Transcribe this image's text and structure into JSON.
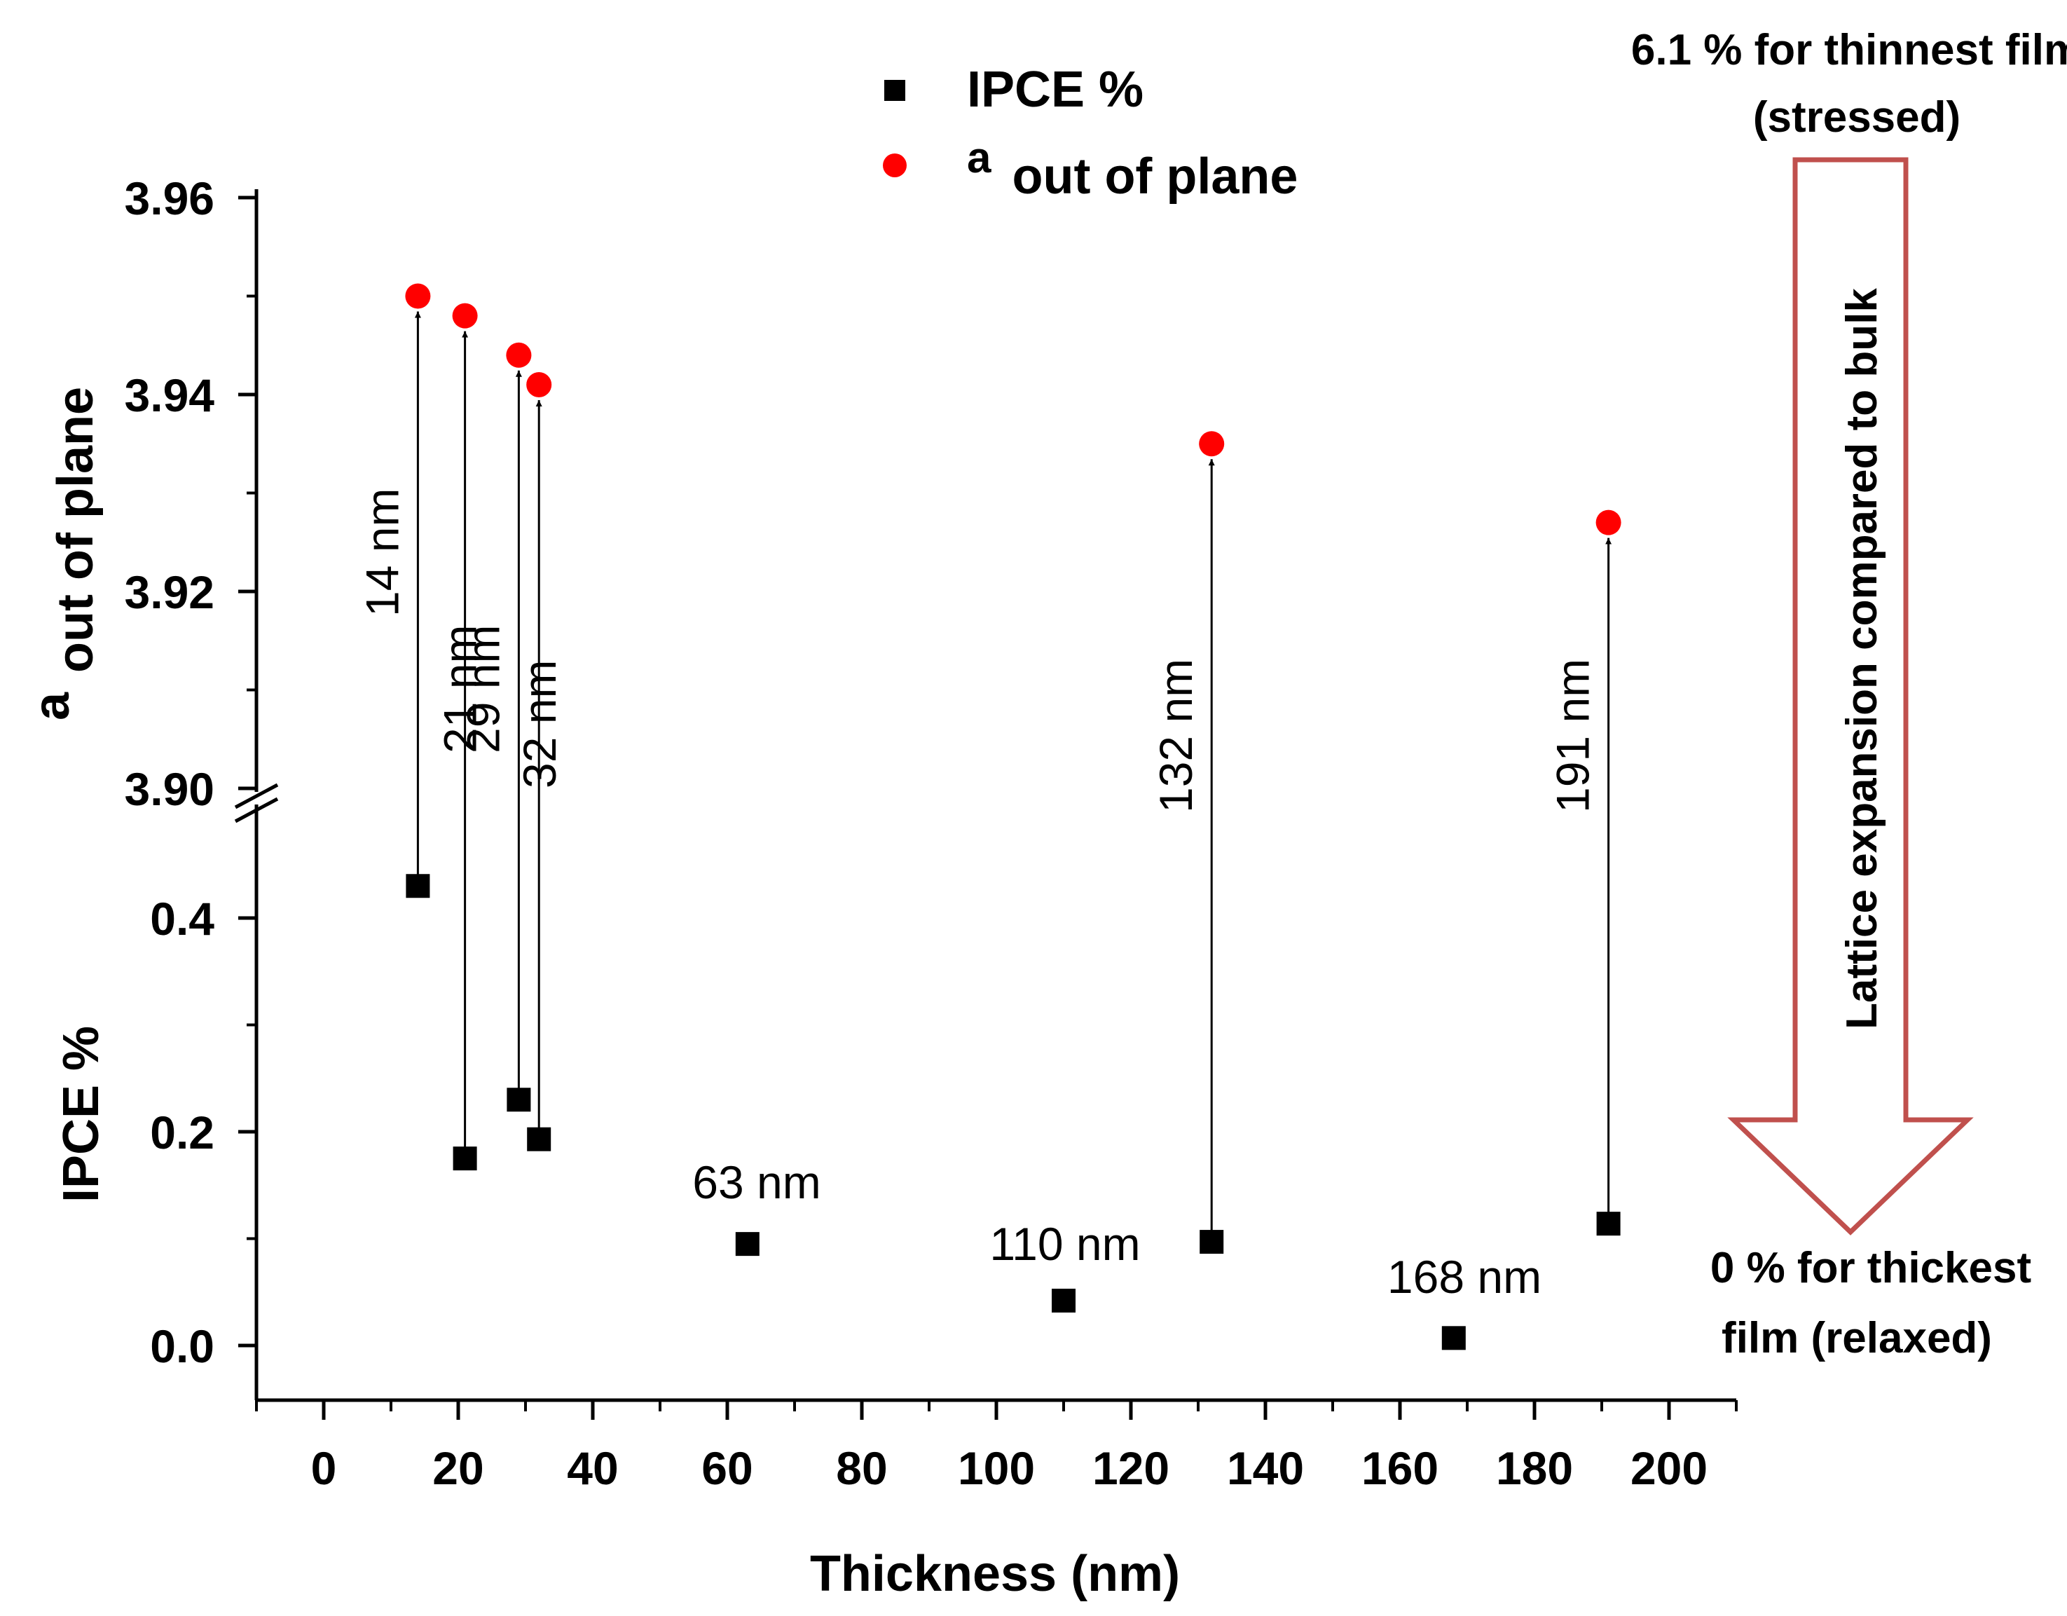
{
  "chart_data": {
    "type": "scatter",
    "x_axis": {
      "label": "Thickness (nm)",
      "range": [
        -10,
        210
      ],
      "ticks": [
        0,
        20,
        40,
        60,
        80,
        100,
        120,
        140,
        160,
        180,
        200
      ],
      "tick_labels": [
        "0",
        "20",
        "40",
        "60",
        "80",
        "100",
        "120",
        "140",
        "160",
        "180",
        "200"
      ]
    },
    "y_axis_upper": {
      "label_main": "a",
      "label_sub": "out of plane",
      "range": [
        3.9,
        3.96
      ],
      "ticks": [
        3.9,
        3.92,
        3.94,
        3.96
      ],
      "tick_labels": [
        "3.90",
        "3.92",
        "3.94",
        "3.96"
      ]
    },
    "y_axis_lower": {
      "label": "IPCE %",
      "range": [
        -0.05,
        0.5
      ],
      "ticks": [
        0.0,
        0.2,
        0.4
      ],
      "tick_labels": [
        "0.0",
        "0.2",
        "0.4"
      ]
    },
    "series": [
      {
        "name": "IPCE %",
        "marker": "square",
        "color": "#000000",
        "axis": "lower",
        "points": [
          {
            "x": 14,
            "y": 0.43
          },
          {
            "x": 21,
            "y": 0.175
          },
          {
            "x": 29,
            "y": 0.23
          },
          {
            "x": 32,
            "y": 0.193
          },
          {
            "x": 63,
            "y": 0.095
          },
          {
            "x": 110,
            "y": 0.042
          },
          {
            "x": 132,
            "y": 0.097
          },
          {
            "x": 168,
            "y": 0.007
          },
          {
            "x": 191,
            "y": 0.114
          }
        ]
      },
      {
        "name_main": "a",
        "name_sub": "out of plane",
        "marker": "circle",
        "color": "#ff0000",
        "axis": "upper",
        "points": [
          {
            "x": 14,
            "y": 3.95
          },
          {
            "x": 21,
            "y": 3.948
          },
          {
            "x": 29,
            "y": 3.944
          },
          {
            "x": 32,
            "y": 3.941
          },
          {
            "x": 132,
            "y": 3.935
          },
          {
            "x": 191,
            "y": 3.927
          }
        ]
      }
    ],
    "arrow_annotations": [
      {
        "x": 14,
        "label": "14 nm"
      },
      {
        "x": 21,
        "label": "21 nm"
      },
      {
        "x": 29,
        "label": "29 nm"
      },
      {
        "x": 32,
        "label": "32 nm"
      },
      {
        "x": 132,
        "label": "132 nm"
      },
      {
        "x": 191,
        "label": "191 nm"
      }
    ],
    "point_labels": [
      {
        "x": 63,
        "label": "63 nm"
      },
      {
        "x": 110,
        "label": "110 nm"
      },
      {
        "x": 168,
        "label": "168 nm"
      }
    ],
    "side_annotation": {
      "top_line1": "6.1 % for thinnest film",
      "top_line2": "(stressed)",
      "arrow_text": "Lattice expansion compared to bulk",
      "bottom_line1": "0 % for thickest",
      "bottom_line2": "film (relaxed)",
      "arrow_color": "#c0504d"
    },
    "legend_position": "top-center"
  }
}
